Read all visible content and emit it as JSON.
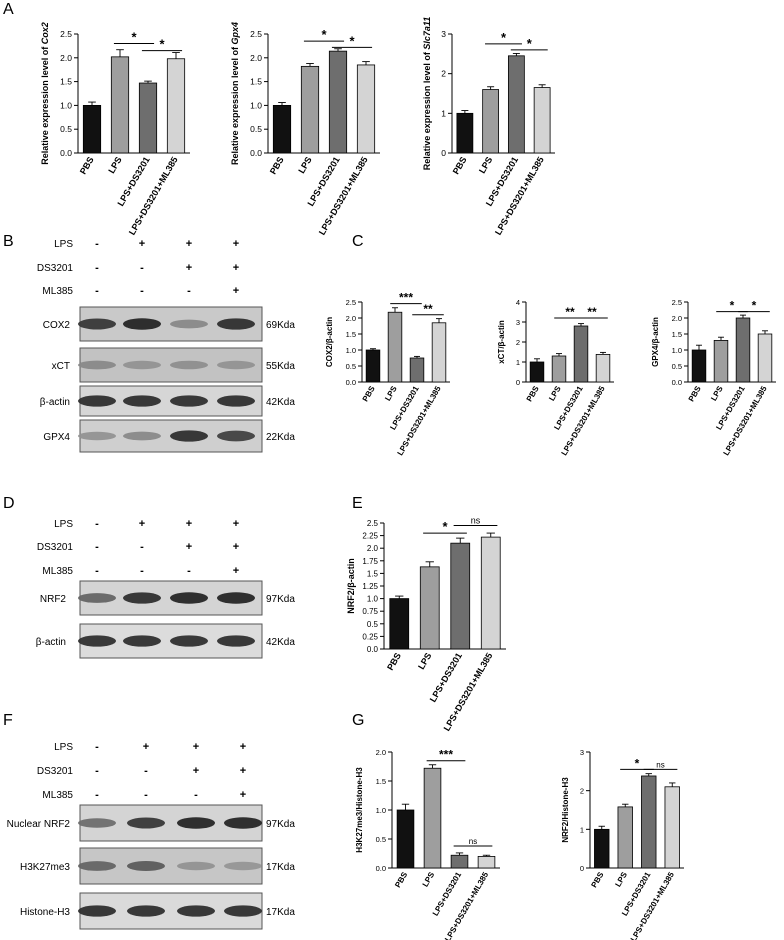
{
  "panel_labels": {
    "A": "A",
    "B": "B",
    "C": "C",
    "D": "D",
    "E": "E",
    "F": "F",
    "G": "G"
  },
  "categories": [
    "PBS",
    "LPS",
    "LPS+DS3201",
    "LPS+DS3201+ML385"
  ],
  "bar_colors": [
    "#111111",
    "#9e9e9e",
    "#6e6e6e",
    "#d4d4d4"
  ],
  "chart_data": [
    {
      "type": "bar",
      "id": "cox2",
      "ylabel": "Relative expression level of ",
      "gene": "Cox2",
      "ylim": [
        0,
        2.5
      ],
      "ticks": [
        "0.0",
        "0.5",
        "1.0",
        "1.5",
        "2.0",
        "2.5"
      ],
      "values": [
        1.0,
        2.02,
        1.47,
        1.98
      ],
      "errors": [
        0.07,
        0.15,
        0.04,
        0.13
      ],
      "sig": [
        {
          "from": 1,
          "to": 2,
          "label": "*",
          "y": 2.3
        },
        {
          "from": 2,
          "to": 3,
          "label": "*",
          "y": 2.15
        }
      ]
    },
    {
      "type": "bar",
      "id": "gpx4",
      "ylabel": "Relative expression level of ",
      "gene": "Gpx4",
      "ylim": [
        0,
        2.5
      ],
      "ticks": [
        "0.0",
        "0.5",
        "1.0",
        "1.5",
        "2.0",
        "2.5"
      ],
      "values": [
        1.0,
        1.82,
        2.14,
        1.85
      ],
      "errors": [
        0.06,
        0.06,
        0.05,
        0.07
      ],
      "sig": [
        {
          "from": 1,
          "to": 2,
          "label": "*",
          "y": 2.35
        },
        {
          "from": 2,
          "to": 3,
          "label": "*",
          "y": 2.22
        }
      ]
    },
    {
      "type": "bar",
      "id": "slc7a11",
      "ylabel": "Relative expression level of ",
      "gene": "Slc7a11",
      "ylim": [
        0,
        3
      ],
      "ticks": [
        "0",
        "1",
        "2",
        "3"
      ],
      "values": [
        1.0,
        1.6,
        2.45,
        1.65
      ],
      "errors": [
        0.07,
        0.07,
        0.06,
        0.07
      ],
      "sig": [
        {
          "from": 1,
          "to": 2,
          "label": "*",
          "y": 2.75
        },
        {
          "from": 2,
          "to": 3,
          "label": "*",
          "y": 2.6
        }
      ]
    },
    {
      "type": "bar",
      "id": "cox2_actin",
      "ylabel": "COX2/β-actin",
      "ylim": [
        0,
        2.5
      ],
      "ticks": [
        "0.0",
        "0.5",
        "1.0",
        "1.5",
        "2.0",
        "2.5"
      ],
      "values": [
        1.0,
        2.18,
        0.75,
        1.85
      ],
      "errors": [
        0.04,
        0.14,
        0.05,
        0.13
      ],
      "sig": [
        {
          "from": 1,
          "to": 2,
          "label": "***",
          "y": 2.45
        },
        {
          "from": 2,
          "to": 3,
          "label": "**",
          "y": 2.1
        }
      ]
    },
    {
      "type": "bar",
      "id": "xct_actin",
      "ylabel": "xCT/β-actin",
      "ylim": [
        0,
        4
      ],
      "ticks": [
        "0",
        "1",
        "2",
        "3",
        "4"
      ],
      "values": [
        1.0,
        1.3,
        2.8,
        1.38
      ],
      "errors": [
        0.16,
        0.12,
        0.12,
        0.1
      ],
      "sig": [
        {
          "from": 1,
          "to": 2,
          "label": "**",
          "y": 3.2
        },
        {
          "from": 2,
          "to": 3,
          "label": "**",
          "y": 3.2
        }
      ]
    },
    {
      "type": "bar",
      "id": "gpx4_actin",
      "ylabel": "GPX4/β-actin",
      "ylim": [
        0,
        2.5
      ],
      "ticks": [
        "0.0",
        "0.5",
        "1.0",
        "1.5",
        "2.0",
        "2.5"
      ],
      "values": [
        1.0,
        1.3,
        2.0,
        1.5
      ],
      "errors": [
        0.15,
        0.1,
        0.09,
        0.1
      ],
      "sig": [
        {
          "from": 1,
          "to": 2,
          "label": "*",
          "y": 2.2
        },
        {
          "from": 2,
          "to": 3,
          "label": "*",
          "y": 2.2
        }
      ]
    },
    {
      "type": "bar",
      "id": "nrf2_actin",
      "ylabel": "NRF2/β-actin",
      "ylim": [
        0,
        2.5
      ],
      "ticks": [
        "0.0",
        "0.25",
        "0.5",
        "0.75",
        "1.0",
        "1.25",
        "1.5",
        "1.75",
        "2.0",
        "2.25",
        "2.5"
      ],
      "values": [
        1.0,
        1.63,
        2.1,
        2.22
      ],
      "errors": [
        0.05,
        0.1,
        0.1,
        0.08
      ],
      "sig": [
        {
          "from": 1,
          "to": 2,
          "label": "*",
          "y": 2.3
        },
        {
          "from": 2,
          "to": 3,
          "label": "ns",
          "y": 2.45
        }
      ]
    },
    {
      "type": "bar",
      "id": "h3k27_h3",
      "ylabel": "H3K27me3/Histone-H3",
      "ylim": [
        0,
        2.0
      ],
      "ticks": [
        "0.0",
        "0.5",
        "1.0",
        "1.5",
        "2.0"
      ],
      "values": [
        1.0,
        1.72,
        0.22,
        0.2
      ],
      "errors": [
        0.1,
        0.06,
        0.04,
        0.02
      ],
      "sig": [
        {
          "from": 1,
          "to": 2,
          "label": "***",
          "y": 1.85
        },
        {
          "from": 2,
          "to": 3,
          "label": "ns",
          "y": 0.38
        }
      ]
    },
    {
      "type": "bar",
      "id": "nrf2_h3",
      "ylabel": "NRF2/Histone-H3",
      "ylim": [
        0,
        3
      ],
      "ticks": [
        "0",
        "1",
        "2",
        "3"
      ],
      "values": [
        1.0,
        1.58,
        2.38,
        2.1
      ],
      "errors": [
        0.08,
        0.07,
        0.06,
        0.1
      ],
      "sig": [
        {
          "from": 1,
          "to": 2,
          "label": "*",
          "y": 2.55
        },
        {
          "from": 2,
          "to": 3,
          "label": "ns",
          "y": 2.55
        }
      ]
    }
  ],
  "blots": {
    "B": {
      "conditions": [
        {
          "name": "LPS",
          "marks": [
            "-",
            "+",
            "+",
            "+"
          ]
        },
        {
          "name": "DS3201",
          "marks": [
            "-",
            "-",
            "+",
            "+"
          ]
        },
        {
          "name": "ML385",
          "marks": [
            "-",
            "-",
            "-",
            "+"
          ]
        }
      ],
      "bands": [
        {
          "name": "COX2",
          "size": "69Kda",
          "int": [
            0.8,
            0.9,
            0.35,
            0.85
          ],
          "bg": "#c9c9c9"
        },
        {
          "name": "xCT",
          "size": "55Kda",
          "int": [
            0.35,
            0.3,
            0.32,
            0.3
          ],
          "bg": "#c2c2c2"
        },
        {
          "name": "β-actin",
          "size": "42Kda",
          "int": [
            0.85,
            0.85,
            0.85,
            0.85
          ],
          "bg": "#d6d6d6"
        },
        {
          "name": "GPX4",
          "size": "22Kda",
          "int": [
            0.3,
            0.35,
            0.85,
            0.75
          ],
          "bg": "#cfcfcf"
        }
      ]
    },
    "D": {
      "conditions": [
        {
          "name": "LPS",
          "marks": [
            "-",
            "+",
            "+",
            "+"
          ]
        },
        {
          "name": "DS3201",
          "marks": [
            "-",
            "-",
            "+",
            "+"
          ]
        },
        {
          "name": "ML385",
          "marks": [
            "-",
            "-",
            "-",
            "+"
          ]
        }
      ],
      "bands": [
        {
          "name": "NRF2",
          "size": "97Kda",
          "int": [
            0.55,
            0.85,
            0.9,
            0.9
          ],
          "bg": "#d4d4d4"
        },
        {
          "name": "β-actin",
          "size": "42Kda",
          "int": [
            0.85,
            0.85,
            0.85,
            0.85
          ],
          "bg": "#dcdcdc"
        }
      ]
    },
    "F": {
      "conditions": [
        {
          "name": "LPS",
          "marks": [
            "-",
            "+",
            "+",
            "+"
          ]
        },
        {
          "name": "DS3201",
          "marks": [
            "-",
            "-",
            "+",
            "+"
          ]
        },
        {
          "name": "ML385",
          "marks": [
            "-",
            "-",
            "-",
            "+"
          ]
        }
      ],
      "bands": [
        {
          "name": "Nuclear NRF2",
          "size": "97Kda",
          "int": [
            0.5,
            0.8,
            0.9,
            0.9
          ],
          "bg": "#d4d4d4"
        },
        {
          "name": "H3K27me3",
          "size": "17Kda",
          "int": [
            0.55,
            0.6,
            0.3,
            0.28
          ],
          "bg": "#c6c6c6"
        },
        {
          "name": "Histone-H3",
          "size": "17Kda",
          "int": [
            0.85,
            0.85,
            0.85,
            0.85
          ],
          "bg": "#dadada"
        }
      ]
    }
  }
}
